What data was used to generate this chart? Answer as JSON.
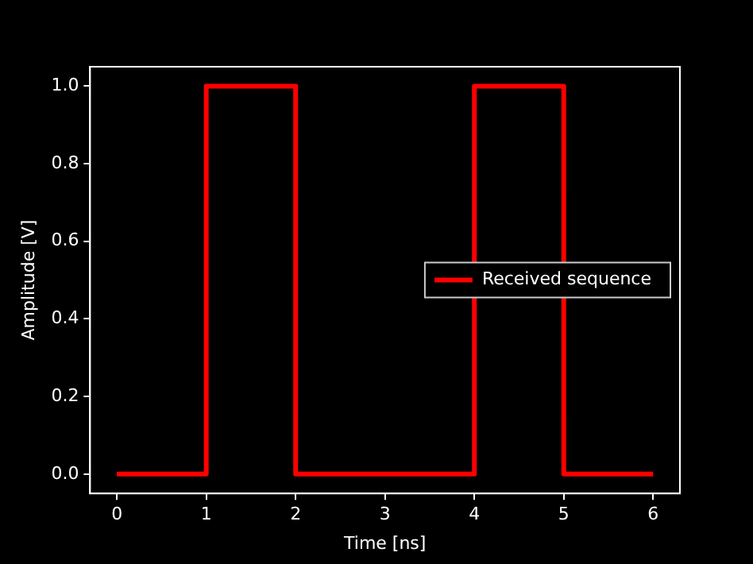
{
  "chart_data": {
    "type": "step",
    "xlabel": "Time [ns]",
    "ylabel": "Amplitude [V]",
    "x": [
      0,
      1,
      2,
      3,
      4,
      5,
      6
    ],
    "series": [
      {
        "name": "Received sequence",
        "color": "#ff0000",
        "values": [
          0,
          1,
          0,
          0,
          1,
          0,
          0
        ]
      }
    ],
    "xlim": [
      -0.3,
      6.3
    ],
    "xticks": [
      0,
      1,
      2,
      3,
      4,
      5,
      6
    ],
    "ylim": [
      -0.05,
      1.05
    ],
    "yticks": [
      {
        "value": 0,
        "label": "0.0"
      },
      0.2,
      0.4,
      0.6,
      0.8,
      {
        "value": 1,
        "label": "1.0"
      }
    ],
    "grid": false,
    "legend": "right",
    "marker": "none",
    "line_style": "solid"
  }
}
